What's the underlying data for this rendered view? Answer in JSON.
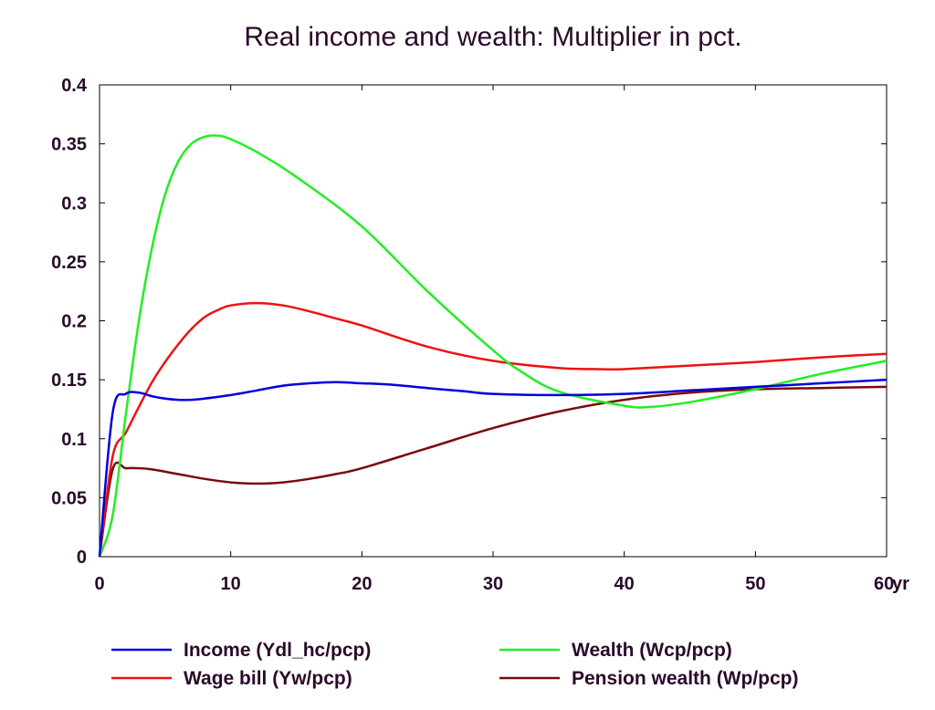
{
  "chart_data": {
    "type": "line",
    "title": "Real income and wealth: Multiplier in pct.",
    "x_unit_label": "yr",
    "xlim": [
      0,
      60
    ],
    "ylim": [
      0,
      0.4
    ],
    "x_ticks": [
      0,
      10,
      20,
      30,
      40,
      50,
      60
    ],
    "x_tick_labels": [
      "0",
      "10",
      "20",
      "30",
      "40",
      "50",
      "60"
    ],
    "y_ticks": [
      0,
      0.05,
      0.1,
      0.15,
      0.2,
      0.25,
      0.3,
      0.35,
      0.4
    ],
    "y_tick_labels": [
      "0",
      "0.05",
      "0.1",
      "0.15",
      "0.2",
      "0.25",
      "0.3",
      "0.35",
      "0.4"
    ],
    "grid": false,
    "legend_position": "bottom",
    "series": [
      {
        "name": "Income (Ydl_hc/pcp)",
        "color": "#0000dd",
        "x": [
          0,
          1,
          2,
          3,
          4,
          5,
          6,
          7,
          8,
          10,
          12,
          14,
          16,
          18,
          20,
          22,
          25,
          28,
          30,
          35,
          40,
          45,
          50,
          55,
          60
        ],
        "y": [
          0,
          0.122,
          0.138,
          0.139,
          0.136,
          0.134,
          0.133,
          0.133,
          0.134,
          0.137,
          0.141,
          0.145,
          0.147,
          0.148,
          0.147,
          0.146,
          0.143,
          0.14,
          0.138,
          0.137,
          0.138,
          0.141,
          0.144,
          0.147,
          0.15
        ]
      },
      {
        "name": "Wealth (Wcp/pcp)",
        "color": "#22ee22",
        "x": [
          0,
          1,
          2,
          3,
          4,
          5,
          6,
          7,
          8,
          9,
          10,
          12,
          15,
          20,
          25,
          30,
          32,
          35,
          40,
          42,
          45,
          50,
          55,
          60
        ],
        "y": [
          0,
          0.035,
          0.12,
          0.2,
          0.262,
          0.307,
          0.335,
          0.35,
          0.356,
          0.357,
          0.354,
          0.343,
          0.322,
          0.28,
          0.225,
          0.175,
          0.158,
          0.14,
          0.128,
          0.127,
          0.131,
          0.142,
          0.155,
          0.166
        ]
      },
      {
        "name": "Wage bill (Yw/pcp)",
        "color": "#ee1111",
        "x": [
          0,
          1,
          2,
          3,
          4,
          5,
          6,
          7,
          8,
          9,
          10,
          12,
          14,
          16,
          18,
          20,
          25,
          30,
          35,
          38,
          40,
          45,
          50,
          55,
          60
        ],
        "y": [
          0,
          0.085,
          0.105,
          0.127,
          0.148,
          0.165,
          0.18,
          0.193,
          0.203,
          0.209,
          0.213,
          0.215,
          0.213,
          0.208,
          0.202,
          0.196,
          0.178,
          0.166,
          0.16,
          0.159,
          0.159,
          0.162,
          0.165,
          0.169,
          0.172
        ]
      },
      {
        "name": "Pension wealth (Wp/pcp)",
        "color": "#7a0a0a",
        "x": [
          0,
          1,
          2,
          3,
          4,
          6,
          8,
          10,
          12,
          14,
          16,
          18,
          20,
          25,
          30,
          35,
          40,
          45,
          50,
          55,
          60
        ],
        "y": [
          0,
          0.074,
          0.075,
          0.075,
          0.074,
          0.07,
          0.066,
          0.063,
          0.062,
          0.063,
          0.066,
          0.07,
          0.075,
          0.092,
          0.109,
          0.123,
          0.133,
          0.139,
          0.142,
          0.143,
          0.144
        ]
      }
    ]
  }
}
